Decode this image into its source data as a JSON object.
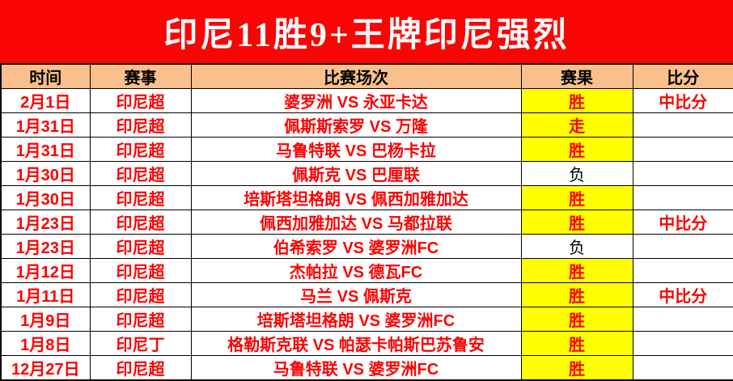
{
  "banner": {
    "title": "印尼11胜9+王牌印尼强烈",
    "bg_color": "#FB0404",
    "text_color": "#FFFFFF"
  },
  "table": {
    "headers": [
      "时间",
      "赛事",
      "比赛场次",
      "赛果",
      "比分"
    ],
    "header_bg": "#F9C08D",
    "win_bg": "#FFFF00",
    "data_text_color": "#FB0202",
    "rows": [
      {
        "date": "2月1日",
        "league": "印尼超",
        "match": "婆罗洲 VS 永亚卡达",
        "result": "胜",
        "result_highlight": true,
        "score": "中比分"
      },
      {
        "date": "1月31日",
        "league": "印尼超",
        "match": "佩斯斯索罗 VS 万隆",
        "result": "走",
        "result_highlight": true,
        "score": ""
      },
      {
        "date": "1月31日",
        "league": "印尼超",
        "match": "马鲁特联 VS 巴杨卡拉",
        "result": "胜",
        "result_highlight": true,
        "score": ""
      },
      {
        "date": "1月30日",
        "league": "印尼超",
        "match": "佩斯克 VS 巴厘联",
        "result": "负",
        "result_highlight": false,
        "score": ""
      },
      {
        "date": "1月30日",
        "league": "印尼超",
        "match": "培斯塔坦格朗 VS 佩西加雅加达",
        "result": "胜",
        "result_highlight": true,
        "score": ""
      },
      {
        "date": "1月23日",
        "league": "印尼超",
        "match": "佩西加雅加达 VS 马都拉联",
        "result": "胜",
        "result_highlight": true,
        "score": "中比分"
      },
      {
        "date": "1月23日",
        "league": "印尼超",
        "match": "伯希索罗 VS 婆罗洲FC",
        "result": "负",
        "result_highlight": false,
        "score": ""
      },
      {
        "date": "1月12日",
        "league": "印尼超",
        "match": "杰帕拉 VS 德瓦FC",
        "result": "胜",
        "result_highlight": true,
        "score": ""
      },
      {
        "date": "1月11日",
        "league": "印尼超",
        "match": "马兰 VS 佩斯克",
        "result": "胜",
        "result_highlight": true,
        "score": "中比分"
      },
      {
        "date": "1月9日",
        "league": "印尼超",
        "match": "培斯塔坦格朗 VS 婆罗洲FC",
        "result": "胜",
        "result_highlight": true,
        "score": ""
      },
      {
        "date": "1月8日",
        "league": "印尼丁",
        "match": "格勒斯克联 VS 帕瑟卡帕斯巴苏鲁安",
        "result": "胜",
        "result_highlight": true,
        "score": ""
      },
      {
        "date": "12月27日",
        "league": "印尼超",
        "match": "马鲁特联 VS 婆罗洲FC",
        "result": "胜",
        "result_highlight": true,
        "score": ""
      }
    ]
  }
}
